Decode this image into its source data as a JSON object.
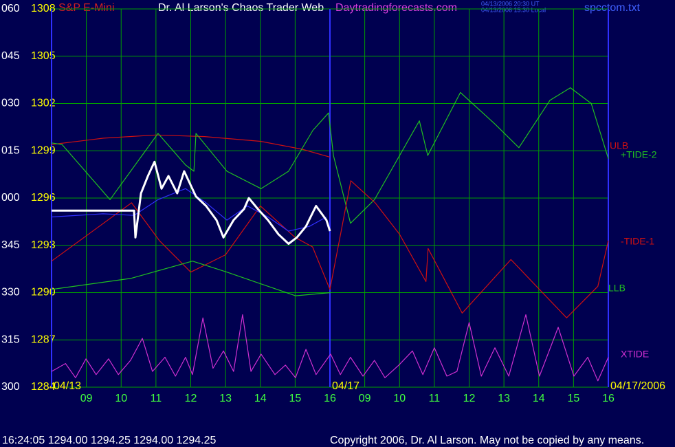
{
  "chart_data": {
    "type": "line",
    "instrument": "S&P E-Mini",
    "title": "Dr. Al Larson's Chaos Trader Web",
    "website": "Daytradingforecasts.com",
    "timestamps": [
      "04/13/2006 20:30 UT",
      "04/13/2006 15:30 Local"
    ],
    "file": "spcctom.txt",
    "status": "16:24:05  1294.00 1294.25 1294.00 1294.25",
    "copyright": "Copyright 2006, Dr. Al Larson. May not be copied by any means.",
    "background": "#000050",
    "grid": true,
    "grid_color": "#00a000",
    "xlim": [
      0,
      16
    ],
    "xticks": [
      {
        "value": 1,
        "label": "09"
      },
      {
        "value": 2,
        "label": "10"
      },
      {
        "value": 3,
        "label": "11"
      },
      {
        "value": 4,
        "label": "12"
      },
      {
        "value": 5,
        "label": "13"
      },
      {
        "value": 6,
        "label": "14"
      },
      {
        "value": 7,
        "label": "15"
      },
      {
        "value": 8,
        "label": "16"
      },
      {
        "value": 9,
        "label": "09"
      },
      {
        "value": 10,
        "label": "10"
      },
      {
        "value": 11,
        "label": "11"
      },
      {
        "value": 12,
        "label": "12"
      },
      {
        "value": 13,
        "label": "13"
      },
      {
        "value": 14,
        "label": "14"
      },
      {
        "value": 15,
        "label": "15"
      },
      {
        "value": 16,
        "label": "16"
      }
    ],
    "date_ticks": [
      {
        "value": 0,
        "label": "04/13"
      },
      {
        "value": 8,
        "label": "04/17"
      },
      {
        "value": 16,
        "label": "04/17/2006"
      }
    ],
    "ylim": [
      1284,
      1308
    ],
    "yticks": [
      1284,
      1287,
      1290,
      1293,
      1296,
      1299,
      1302,
      1305,
      1308
    ],
    "y2lim": [
      300,
      420
    ],
    "y2ticks": [
      300,
      315,
      330,
      345,
      {
        "value": 360,
        "label": "000"
      },
      {
        "value": 375,
        "label": "015"
      },
      {
        "value": 390,
        "label": "030"
      },
      {
        "value": 405,
        "label": "045"
      },
      {
        "value": 420,
        "label": "060"
      }
    ],
    "series": [
      {
        "name": "ULB",
        "color": "#d01010",
        "x": [
          0,
          1.5,
          3.0,
          4.4,
          6.0,
          7.2,
          8.0
        ],
        "values": [
          1299.4,
          1299.8,
          1300.0,
          1299.9,
          1299.6,
          1299.1,
          1298.6
        ]
      },
      {
        "name": "+TIDE-2",
        "color": "#20c020",
        "x": [
          0,
          0.3,
          1.68,
          3.06,
          3.85,
          4.09,
          4.15,
          5.04,
          6.02,
          6.81,
          7.51,
          7.96,
          8.1,
          8.59,
          9.28,
          10.57,
          10.81,
          11.75,
          12.74,
          13.43,
          14.32,
          14.91,
          15.51,
          16.0
        ],
        "values": [
          1299.5,
          1299.4,
          1295.9,
          1300.1,
          1298.1,
          1297.7,
          1300.1,
          1297.7,
          1296.6,
          1297.7,
          1300.3,
          1301.4,
          1298.7,
          1294.4,
          1295.9,
          1300.9,
          1298.7,
          1302.7,
          1300.7,
          1299.2,
          1302.2,
          1303.0,
          1302.0,
          1298.5
        ]
      },
      {
        "name": "-TIDE-1",
        "color": "#d01010",
        "x": [
          0,
          2.3,
          3.1,
          4.0,
          5.0,
          6.0,
          7.0,
          7.5,
          8.0,
          8.6,
          9.3,
          10.0,
          10.76,
          10.82,
          11.8,
          13.2,
          14.8,
          15.7,
          16.0
        ],
        "values": [
          1292.0,
          1295.7,
          1293.3,
          1291.3,
          1292.4,
          1295.5,
          1293.5,
          1292.9,
          1290.2,
          1297.1,
          1295.7,
          1293.7,
          1290.7,
          1292.8,
          1288.7,
          1292.1,
          1288.4,
          1290.4,
          1293.3
        ]
      },
      {
        "name": "LLB",
        "color": "#20c020",
        "x": [
          0,
          2.27,
          4.05,
          5.04,
          7.01,
          8.02
        ],
        "values": [
          1290.2,
          1290.9,
          1292.0,
          1291.3,
          1289.8,
          1290.0
        ]
      },
      {
        "name": "XTIDE",
        "color": "#d030d0",
        "x": [
          0,
          0.4,
          0.69,
          0.99,
          1.28,
          1.64,
          1.92,
          2.27,
          2.61,
          2.9,
          3.26,
          3.56,
          3.85,
          4.05,
          4.35,
          4.64,
          4.94,
          5.23,
          5.49,
          5.73,
          6.02,
          6.42,
          6.72,
          7.01,
          7.31,
          7.6,
          8.02,
          8.3,
          8.59,
          8.95,
          9.28,
          9.58,
          9.98,
          10.37,
          10.67,
          11.0,
          11.36,
          11.65,
          12.0,
          12.35,
          12.74,
          13.14,
          13.63,
          14.02,
          14.56,
          15.01,
          15.41,
          15.7,
          16.0
        ],
        "values": [
          1285.0,
          1285.5,
          1284.6,
          1285.8,
          1284.8,
          1285.8,
          1284.8,
          1285.7,
          1287.1,
          1285.0,
          1285.9,
          1284.7,
          1285.9,
          1284.8,
          1288.4,
          1285.2,
          1286.3,
          1285.0,
          1288.6,
          1285.0,
          1286.1,
          1284.8,
          1285.4,
          1284.6,
          1286.4,
          1284.8,
          1286.1,
          1284.8,
          1285.9,
          1284.7,
          1285.7,
          1284.6,
          1285.4,
          1286.3,
          1284.8,
          1286.5,
          1284.7,
          1285.0,
          1288.1,
          1284.7,
          1286.5,
          1284.7,
          1288.6,
          1284.7,
          1287.8,
          1284.7,
          1285.9,
          1284.4,
          1285.9
        ]
      },
      {
        "color": "#3030ff",
        "x": [
          0,
          1.48,
          2.37,
          3.06,
          3.85,
          4.44,
          5.04,
          5.63,
          6.22,
          6.81,
          7.41,
          7.9
        ],
        "values": [
          1294.8,
          1295.0,
          1294.9,
          1295.9,
          1296.6,
          1295.7,
          1294.6,
          1295.5,
          1294.8,
          1293.9,
          1294.2,
          1294.8
        ]
      },
      {
        "color": "#ffffff",
        "x": [
          0,
          2.37,
          2.41,
          2.57,
          2.77,
          2.96,
          3.16,
          3.36,
          3.61,
          3.81,
          4.15,
          4.44,
          4.74,
          4.94,
          5.23,
          5.53,
          5.67,
          5.93,
          6.22,
          6.52,
          6.81,
          7.05,
          7.31,
          7.6,
          7.9,
          8.0
        ],
        "values": [
          1295.2,
          1295.2,
          1293.5,
          1296.3,
          1297.4,
          1298.3,
          1296.6,
          1297.4,
          1296.3,
          1297.7,
          1296.1,
          1295.5,
          1294.6,
          1293.5,
          1294.6,
          1295.3,
          1296.0,
          1295.3,
          1294.6,
          1293.7,
          1293.1,
          1293.5,
          1294.2,
          1295.5,
          1294.6,
          1293.9
        ]
      }
    ]
  }
}
